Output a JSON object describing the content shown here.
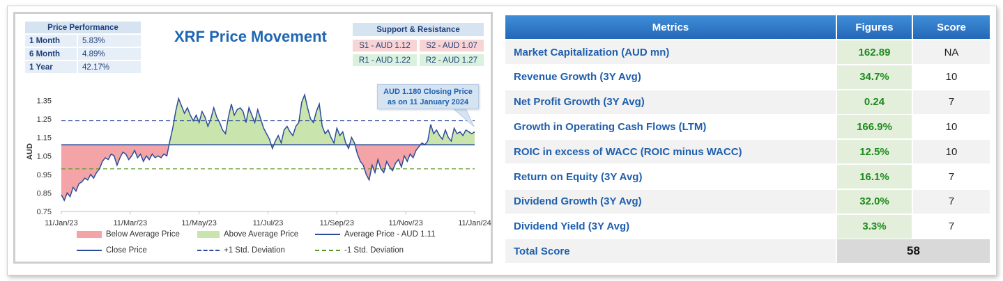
{
  "colors": {
    "title_blue": "#1f66b3",
    "header_blue": "#2f7fcf",
    "below_fill": "#f4a3a6",
    "above_fill": "#c9e4ad",
    "line_blue": "#2b4c9a",
    "dash_green": "#5a9a2a",
    "figure_green": "#1d8b1d"
  },
  "price_performance": {
    "header": "Price Performance",
    "rows": [
      {
        "label": "1 Month",
        "value": "5.83%"
      },
      {
        "label": "6 Month",
        "value": "4.89%"
      },
      {
        "label": "1 Year",
        "value": "42.17%"
      }
    ]
  },
  "support_resistance": {
    "header": "Support & Resistance",
    "s1": "S1 - AUD 1.12",
    "s2": "S2 - AUD 1.07",
    "r1": "R1 - AUD 1.22",
    "r2": "R2 - AUD 1.27"
  },
  "callout": {
    "line1": "AUD 1.180 Closing Price",
    "line2": "as on 11 January 2024"
  },
  "legend": {
    "below": "Below Average Price",
    "above": "Above Average Price",
    "avg": "Average Price - AUD 1.11",
    "close": "Close Price",
    "plus_sd": "+1 Std. Deviation",
    "minus_sd": "-1 Std. Deviation"
  },
  "chart_data": {
    "type": "line",
    "title": "XRF Price Movement",
    "ylabel": "AUD",
    "ylim": [
      0.75,
      1.4
    ],
    "yticks": [
      "1.35",
      "1.25",
      "1.15",
      "1.05",
      "0.95",
      "0.85",
      "0.75"
    ],
    "xticks": [
      "11/Jan/23",
      "11/Mar/23",
      "11/May/23",
      "11/Jul/23",
      "11/Sep/23",
      "11/Nov/23",
      "11/Jan/24"
    ],
    "average": 1.11,
    "plus_sd": 1.24,
    "minus_sd": 0.98,
    "series": [
      {
        "name": "Close Price",
        "values": [
          0.84,
          0.81,
          0.85,
          0.83,
          0.88,
          0.86,
          0.9,
          0.91,
          0.93,
          0.92,
          0.95,
          0.93,
          0.96,
          0.98,
          1.02,
          1.04,
          1.03,
          1.06,
          1.05,
          1.0,
          1.04,
          1.07,
          1.06,
          1.03,
          1.05,
          1.08,
          1.04,
          1.06,
          1.02,
          1.05,
          1.03,
          1.06,
          1.04,
          1.05,
          1.04,
          1.06,
          1.05,
          1.13,
          1.2,
          1.29,
          1.36,
          1.32,
          1.28,
          1.31,
          1.27,
          1.24,
          1.27,
          1.23,
          1.29,
          1.26,
          1.21,
          1.25,
          1.31,
          1.26,
          1.23,
          1.19,
          1.17,
          1.26,
          1.33,
          1.27,
          1.3,
          1.31,
          1.29,
          1.23,
          1.31,
          1.27,
          1.23,
          1.3,
          1.25,
          1.2,
          1.17,
          1.14,
          1.09,
          1.13,
          1.16,
          1.12,
          1.19,
          1.21,
          1.18,
          1.16,
          1.21,
          1.23,
          1.34,
          1.38,
          1.31,
          1.25,
          1.23,
          1.29,
          1.33,
          1.21,
          1.17,
          1.19,
          1.15,
          1.12,
          1.2,
          1.16,
          1.18,
          1.12,
          1.09,
          1.15,
          1.12,
          1.06,
          1.02,
          1.0,
          0.95,
          0.92,
          1.0,
          0.96,
          1.03,
          0.98,
          0.96,
          1.02,
          0.99,
          0.97,
          1.01,
          1.03,
          0.99,
          1.05,
          1.02,
          1.06,
          1.04,
          1.08,
          1.1,
          1.12,
          1.11,
          1.13,
          1.22,
          1.17,
          1.19,
          1.16,
          1.14,
          1.19,
          1.15,
          1.13,
          1.2,
          1.17,
          1.18,
          1.16,
          1.19,
          1.18,
          1.17,
          1.18
        ]
      }
    ]
  },
  "metrics_table": {
    "headers": {
      "metric": "Metrics",
      "figure": "Figures",
      "score": "Score"
    },
    "rows": [
      {
        "metric": "Market Capitalization (AUD mn)",
        "figure": "162.89",
        "score": "NA"
      },
      {
        "metric": "Revenue Growth (3Y Avg)",
        "figure": "34.7%",
        "score": "10"
      },
      {
        "metric": "Net Profit Growth (3Y Avg)",
        "figure": "0.24",
        "score": "7"
      },
      {
        "metric": "Growth in Operating Cash Flows (LTM)",
        "figure": "166.9%",
        "score": "10"
      },
      {
        "metric": "ROIC in excess of WACC (ROIC minus WACC)",
        "figure": "12.5%",
        "score": "10"
      },
      {
        "metric": "Return on Equity (3Y Avg)",
        "figure": "16.1%",
        "score": "7"
      },
      {
        "metric": "Dividend Growth (3Y Avg)",
        "figure": "32.0%",
        "score": "7"
      },
      {
        "metric": "Dividend Yield (3Y Avg)",
        "figure": "3.3%",
        "score": "7"
      }
    ],
    "total": {
      "label": "Total Score",
      "value": "58"
    }
  }
}
